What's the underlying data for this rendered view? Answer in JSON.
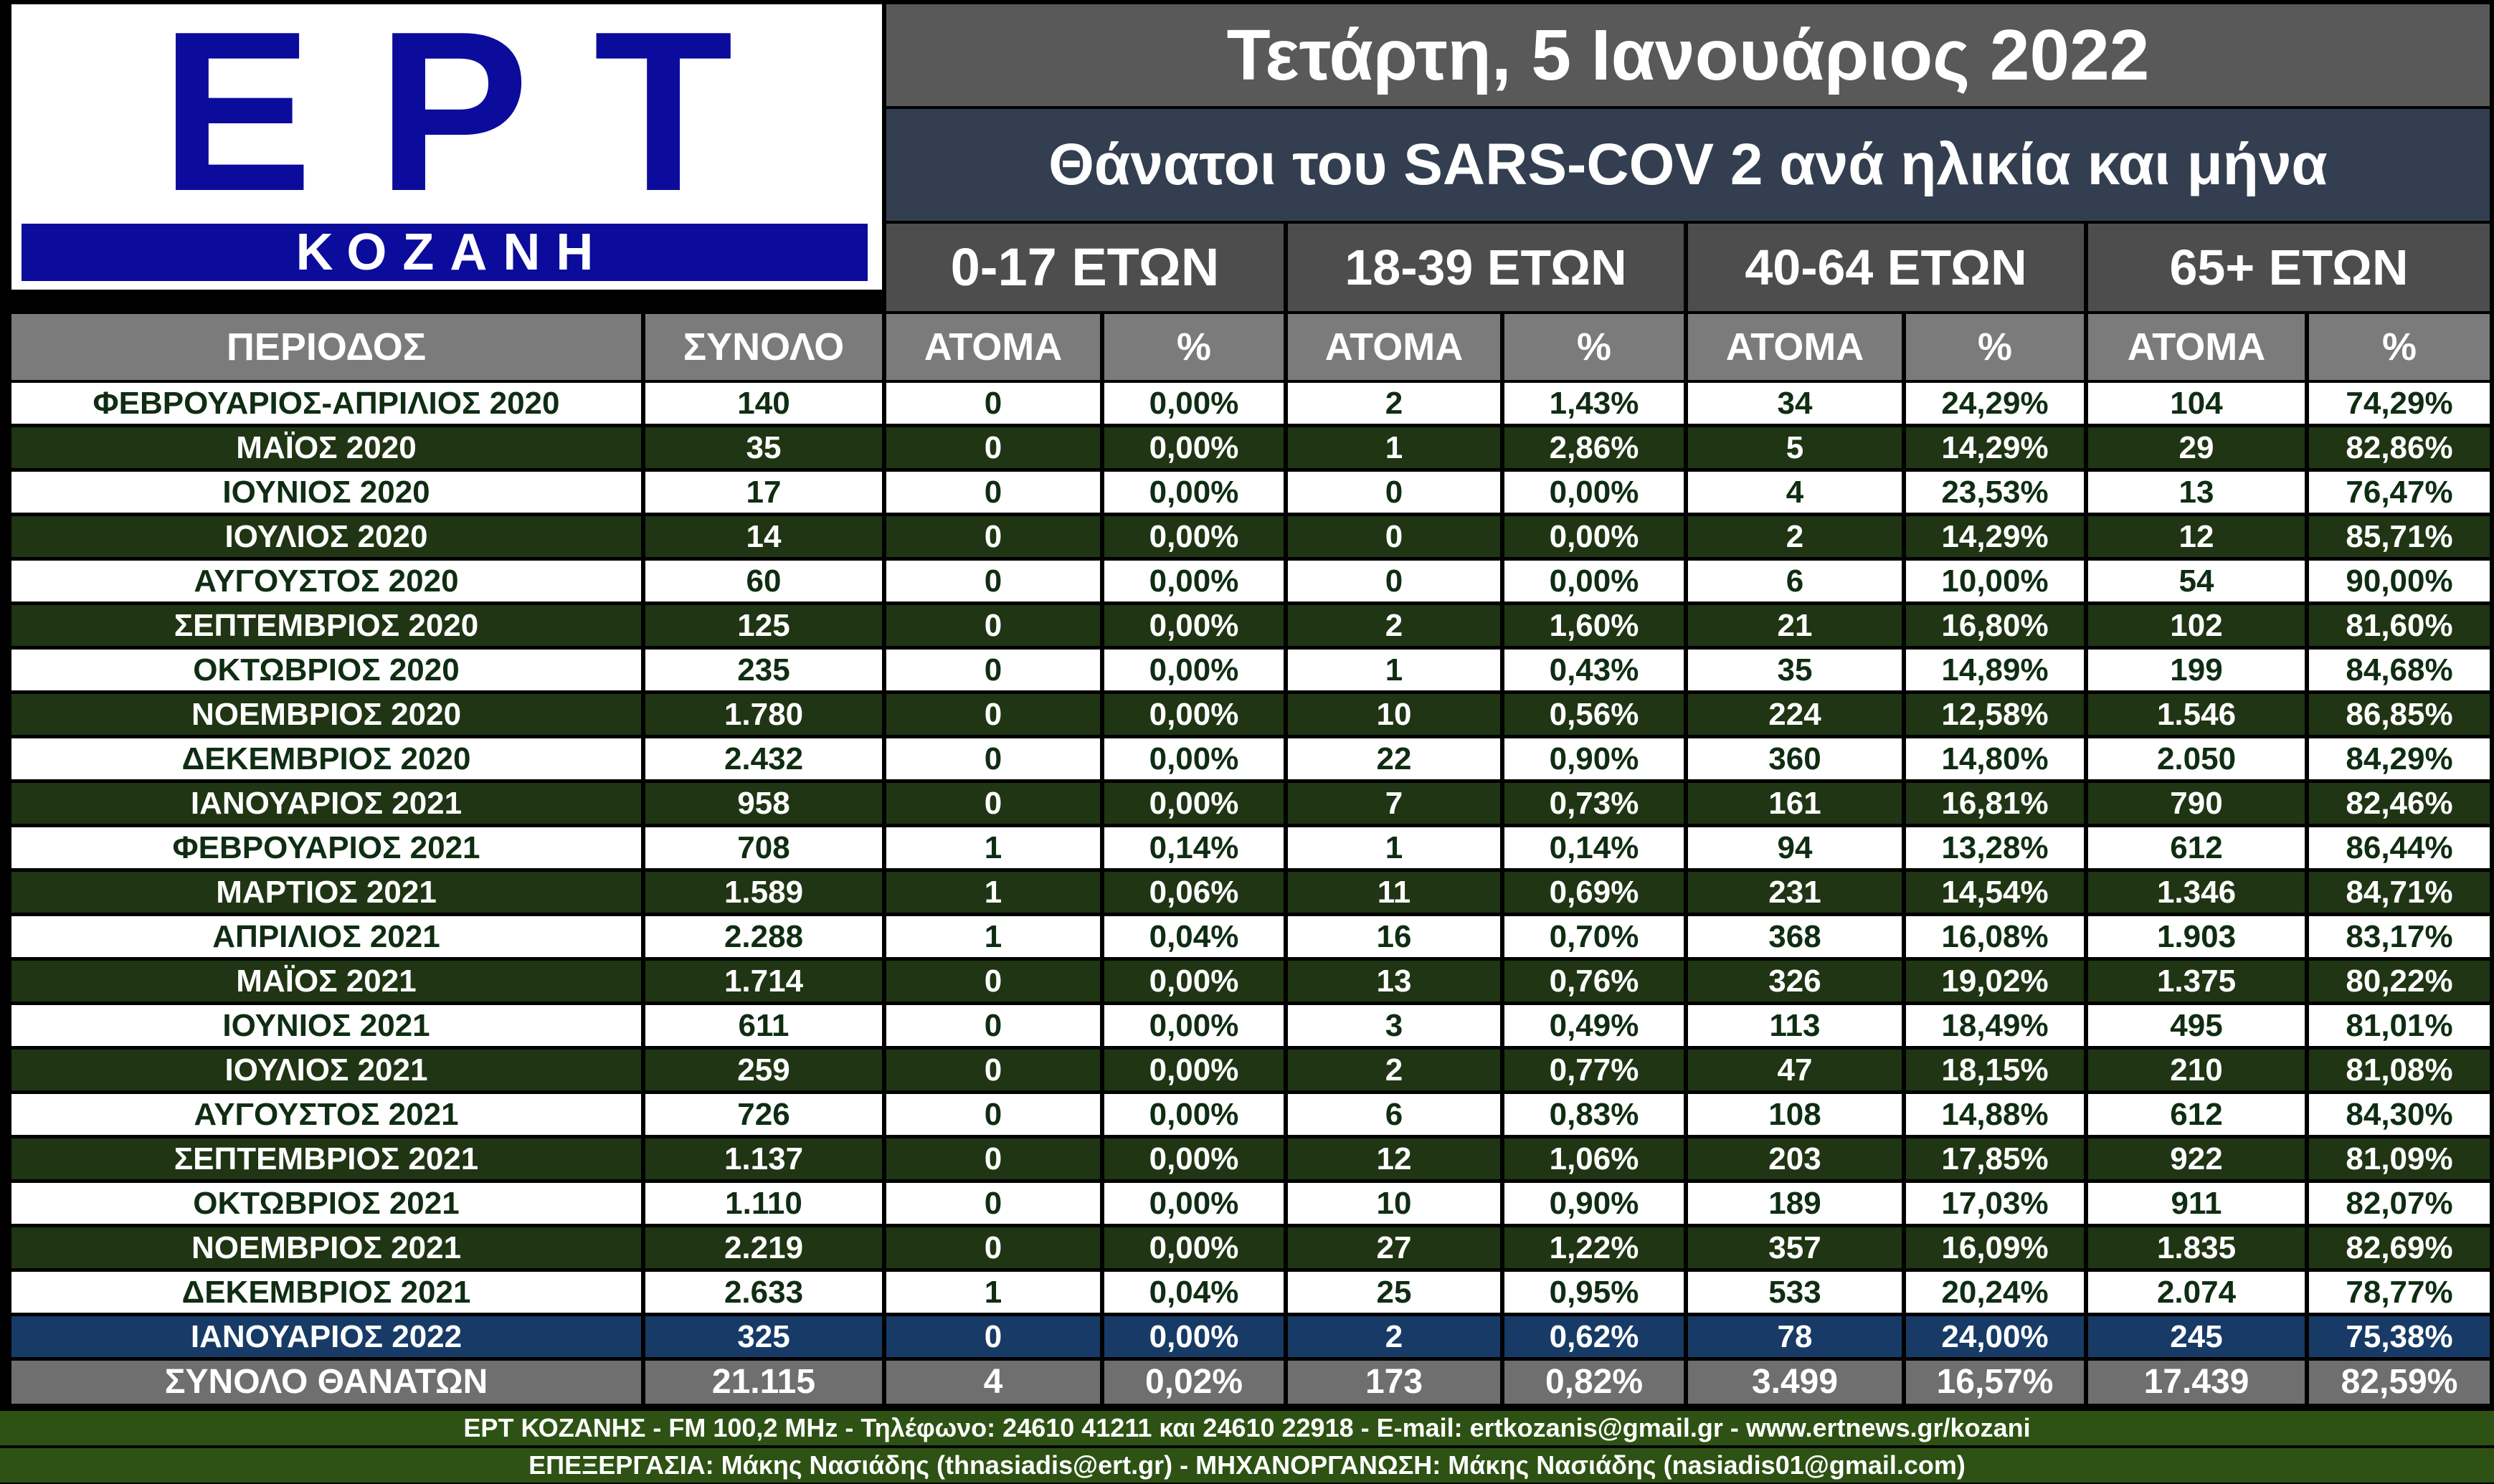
{
  "logo": {
    "brand": "ΕΡΤ",
    "city": "ΚΟΖΑΝΗ"
  },
  "header": {
    "date": "Τετάρτη, 5 Ιανουάριος 2022",
    "title": "Θάνατοι του SARS-COV 2 ανά ηλικία και μήνα",
    "age_groups": [
      "0-17 ΕΤΩΝ",
      "18-39 ΕΤΩΝ",
      "40-64 ΕΤΩΝ",
      "65+  ΕΤΩΝ"
    ]
  },
  "columns": [
    "ΠΕΡΙΟΔΟΣ",
    "ΣΥΝΟΛΟ",
    "ΑΤΟΜΑ",
    "%",
    "ΑΤΟΜΑ",
    "%",
    "ΑΤΟΜΑ",
    "%",
    "ΑΤΟΜΑ",
    "%"
  ],
  "rows": [
    [
      "ΦΕΒΡΟΥΑΡΙΟΣ-ΑΠΡΙΛΙΟΣ 2020",
      "140",
      "0",
      "0,00%",
      "2",
      "1,43%",
      "34",
      "24,29%",
      "104",
      "74,29%"
    ],
    [
      "ΜΑΪΟΣ 2020",
      "35",
      "0",
      "0,00%",
      "1",
      "2,86%",
      "5",
      "14,29%",
      "29",
      "82,86%"
    ],
    [
      "ΙΟΥΝΙΟΣ 2020",
      "17",
      "0",
      "0,00%",
      "0",
      "0,00%",
      "4",
      "23,53%",
      "13",
      "76,47%"
    ],
    [
      "ΙΟΥΛΙΟΣ 2020",
      "14",
      "0",
      "0,00%",
      "0",
      "0,00%",
      "2",
      "14,29%",
      "12",
      "85,71%"
    ],
    [
      "ΑΥΓΟΥΣΤΟΣ 2020",
      "60",
      "0",
      "0,00%",
      "0",
      "0,00%",
      "6",
      "10,00%",
      "54",
      "90,00%"
    ],
    [
      "ΣΕΠΤΕΜΒΡΙΟΣ 2020",
      "125",
      "0",
      "0,00%",
      "2",
      "1,60%",
      "21",
      "16,80%",
      "102",
      "81,60%"
    ],
    [
      "ΟΚΤΩΒΡΙΟΣ 2020",
      "235",
      "0",
      "0,00%",
      "1",
      "0,43%",
      "35",
      "14,89%",
      "199",
      "84,68%"
    ],
    [
      "ΝΟΕΜΒΡΙΟΣ 2020",
      "1.780",
      "0",
      "0,00%",
      "10",
      "0,56%",
      "224",
      "12,58%",
      "1.546",
      "86,85%"
    ],
    [
      "ΔΕΚΕΜΒΡΙΟΣ 2020",
      "2.432",
      "0",
      "0,00%",
      "22",
      "0,90%",
      "360",
      "14,80%",
      "2.050",
      "84,29%"
    ],
    [
      "ΙΑΝΟΥΑΡΙΟΣ 2021",
      "958",
      "0",
      "0,00%",
      "7",
      "0,73%",
      "161",
      "16,81%",
      "790",
      "82,46%"
    ],
    [
      "ΦΕΒΡΟΥΑΡΙΟΣ 2021",
      "708",
      "1",
      "0,14%",
      "1",
      "0,14%",
      "94",
      "13,28%",
      "612",
      "86,44%"
    ],
    [
      "ΜΑΡΤΙΟΣ 2021",
      "1.589",
      "1",
      "0,06%",
      "11",
      "0,69%",
      "231",
      "14,54%",
      "1.346",
      "84,71%"
    ],
    [
      "ΑΠΡΙΛΙΟΣ 2021",
      "2.288",
      "1",
      "0,04%",
      "16",
      "0,70%",
      "368",
      "16,08%",
      "1.903",
      "83,17%"
    ],
    [
      "ΜΑΪΟΣ 2021",
      "1.714",
      "0",
      "0,00%",
      "13",
      "0,76%",
      "326",
      "19,02%",
      "1.375",
      "80,22%"
    ],
    [
      "ΙΟΥΝΙΟΣ 2021",
      "611",
      "0",
      "0,00%",
      "3",
      "0,49%",
      "113",
      "18,49%",
      "495",
      "81,01%"
    ],
    [
      "ΙΟΥΛΙΟΣ 2021",
      "259",
      "0",
      "0,00%",
      "2",
      "0,77%",
      "47",
      "18,15%",
      "210",
      "81,08%"
    ],
    [
      "ΑΥΓΟΥΣΤΟΣ 2021",
      "726",
      "0",
      "0,00%",
      "6",
      "0,83%",
      "108",
      "14,88%",
      "612",
      "84,30%"
    ],
    [
      "ΣΕΠΤΕΜΒΡΙΟΣ 2021",
      "1.137",
      "0",
      "0,00%",
      "12",
      "1,06%",
      "203",
      "17,85%",
      "922",
      "81,09%"
    ],
    [
      "ΟΚΤΩΒΡΙΟΣ 2021",
      "1.110",
      "0",
      "0,00%",
      "10",
      "0,90%",
      "189",
      "17,03%",
      "911",
      "82,07%"
    ],
    [
      "ΝΟΕΜΒΡΙΟΣ 2021",
      "2.219",
      "0",
      "0,00%",
      "27",
      "1,22%",
      "357",
      "16,09%",
      "1.835",
      "82,69%"
    ],
    [
      "ΔΕΚΕΜΒΡΙΟΣ 2021",
      "2.633",
      "1",
      "0,04%",
      "25",
      "0,95%",
      "533",
      "20,24%",
      "2.074",
      "78,77%"
    ],
    [
      "ΙΑΝΟΥΑΡΙΟΣ 2022",
      "325",
      "0",
      "0,00%",
      "2",
      "0,62%",
      "78",
      "24,00%",
      "245",
      "75,38%"
    ]
  ],
  "total": [
    "ΣΥΝΟΛΟ ΘΑΝΑΤΩΝ",
    "21.115",
    "4",
    "0,02%",
    "173",
    "0,82%",
    "3.499",
    "16,57%",
    "17.439",
    "82,59%"
  ],
  "footer": {
    "line1": "ΕΡΤ ΚΟΖΑΝΗΣ - FM 100,2 MHz - Τηλέφωνο:  24610 41211 και 24610 22918 - E-mail: ertkozanis@gmail.gr - www.ertnews.gr/kozani",
    "line2": "ΕΠΕΞΕΡΓΑΣΙΑ: Μάκης Νασιάδης (thnasiadis@ert.gr) - ΜΗΧΑΝΟΡΓΑΝΩΣΗ: Μάκης Νασιάδης (nasiadis01@gmail.com)"
  },
  "colors": {
    "logo_blue": "#0b0c9c",
    "row_green": "#1f3513",
    "row_white": "#ffffff",
    "row_current": "#173b66",
    "footer_green": "#2d5213"
  }
}
